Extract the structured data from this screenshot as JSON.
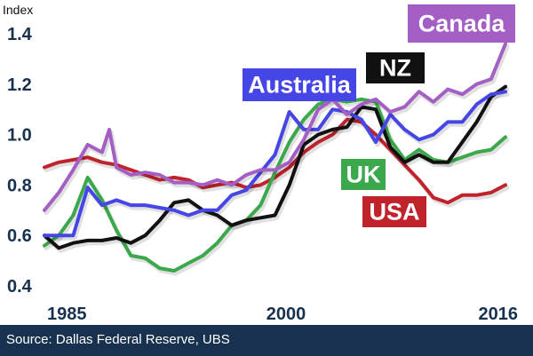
{
  "source": "Source: Dallas Federal Reserve, UBS",
  "chart_data": {
    "type": "line",
    "title": "",
    "ylabel": "Index",
    "xlabel": "",
    "xlim": [
      1984,
      2016.8
    ],
    "ylim": [
      0.4,
      1.45
    ],
    "x_ticks": [
      1985,
      2000,
      2016
    ],
    "y_ticks": [
      0.4,
      0.6,
      0.8,
      1.0,
      1.2,
      1.4
    ],
    "y_tick_labels": [
      "0.4",
      "0.6",
      "0.8",
      "1.0",
      "1.2",
      "1.4"
    ],
    "grid": false,
    "legend": "direct labels",
    "series": [
      {
        "name": "USA",
        "color": "#c0232c",
        "label_color": "#ffffff",
        "x": [
          1984,
          1985,
          1986,
          1987,
          1988,
          1989,
          1990,
          1991,
          1992,
          1993,
          1994,
          1995,
          1996,
          1997,
          1998,
          1999,
          2000,
          2001,
          2002,
          2003,
          2004,
          2005,
          2006,
          2007,
          2008,
          2009,
          2010,
          2011,
          2012,
          2013,
          2014,
          2015,
          2016
        ],
        "y": [
          0.87,
          0.89,
          0.9,
          0.91,
          0.89,
          0.88,
          0.86,
          0.84,
          0.82,
          0.83,
          0.82,
          0.79,
          0.8,
          0.81,
          0.79,
          0.8,
          0.83,
          0.87,
          0.93,
          0.97,
          1.0,
          1.06,
          1.05,
          1.0,
          0.94,
          0.88,
          0.82,
          0.75,
          0.73,
          0.76,
          0.76,
          0.77,
          0.8
        ]
      },
      {
        "name": "UK",
        "color": "#3aa84b",
        "label_color": "#ffffff",
        "x": [
          1984,
          1985,
          1986,
          1987,
          1988,
          1989,
          1990,
          1991,
          1992,
          1993,
          1994,
          1995,
          1996,
          1997,
          1998,
          1999,
          2000,
          2001,
          2002,
          2003,
          2004,
          2005,
          2006,
          2007,
          2008,
          2009,
          2010,
          2011,
          2012,
          2013,
          2014,
          2015,
          2016
        ],
        "y": [
          0.56,
          0.6,
          0.68,
          0.83,
          0.74,
          0.62,
          0.52,
          0.51,
          0.47,
          0.46,
          0.49,
          0.52,
          0.57,
          0.64,
          0.66,
          0.72,
          0.85,
          0.97,
          1.06,
          1.12,
          1.14,
          1.13,
          1.14,
          1.13,
          0.98,
          0.9,
          0.94,
          0.9,
          0.89,
          0.91,
          0.93,
          0.94,
          0.99
        ]
      },
      {
        "name": "NZ",
        "color": "#111111",
        "label_color": "#ffffff",
        "x": [
          1984,
          1985,
          1986,
          1987,
          1988,
          1989,
          1990,
          1991,
          1992,
          1993,
          1994,
          1995,
          1996,
          1997,
          1998,
          1999,
          2000,
          2001,
          2002,
          2003,
          2004,
          2005,
          2006,
          2007,
          2008,
          2009,
          2010,
          2011,
          2012,
          2013,
          2014,
          2015,
          2016
        ],
        "y": [
          0.6,
          0.55,
          0.57,
          0.58,
          0.58,
          0.59,
          0.57,
          0.6,
          0.66,
          0.73,
          0.74,
          0.7,
          0.68,
          0.64,
          0.66,
          0.67,
          0.68,
          0.8,
          0.96,
          1.0,
          1.02,
          1.03,
          1.11,
          1.1,
          0.95,
          0.89,
          0.92,
          0.89,
          0.89,
          0.97,
          1.05,
          1.15,
          1.19
        ]
      },
      {
        "name": "Australia",
        "color": "#4646e6",
        "label_color": "#ffffff",
        "x": [
          1984,
          1985,
          1986,
          1987,
          1988,
          1989,
          1990,
          1991,
          1992,
          1993,
          1994,
          1995,
          1996,
          1997,
          1998,
          1999,
          2000,
          2001,
          2002,
          2003,
          2004,
          2005,
          2006,
          2007,
          2008,
          2009,
          2010,
          2011,
          2012,
          2013,
          2014,
          2015,
          2016
        ],
        "y": [
          0.6,
          0.6,
          0.6,
          0.79,
          0.72,
          0.74,
          0.72,
          0.72,
          0.71,
          0.7,
          0.68,
          0.7,
          0.7,
          0.76,
          0.78,
          0.85,
          0.92,
          1.09,
          1.02,
          1.02,
          1.1,
          1.09,
          1.06,
          0.97,
          1.08,
          1.02,
          0.98,
          1.0,
          1.05,
          1.05,
          1.12,
          1.16,
          1.17
        ]
      },
      {
        "name": "Canada",
        "color": "#a45fc4",
        "label_color": "#ffffff",
        "x": [
          1984,
          1985,
          1986,
          1987,
          1988,
          1988.5,
          1989,
          1990,
          1991,
          1992,
          1993,
          1994,
          1995,
          1996,
          1997,
          1998,
          1999,
          2000,
          2001,
          2002,
          2003,
          2004,
          2005,
          2006,
          2007,
          2008,
          2009,
          2010,
          2011,
          2012,
          2013,
          2014,
          2015,
          2016
        ],
        "y": [
          0.7,
          0.77,
          0.86,
          0.96,
          0.93,
          1.02,
          0.87,
          0.84,
          0.85,
          0.84,
          0.81,
          0.81,
          0.8,
          0.82,
          0.8,
          0.84,
          0.86,
          0.86,
          0.89,
          0.98,
          1.1,
          1.14,
          1.08,
          1.12,
          1.14,
          1.09,
          1.11,
          1.17,
          1.13,
          1.18,
          1.16,
          1.2,
          1.22,
          1.36
        ]
      }
    ]
  }
}
